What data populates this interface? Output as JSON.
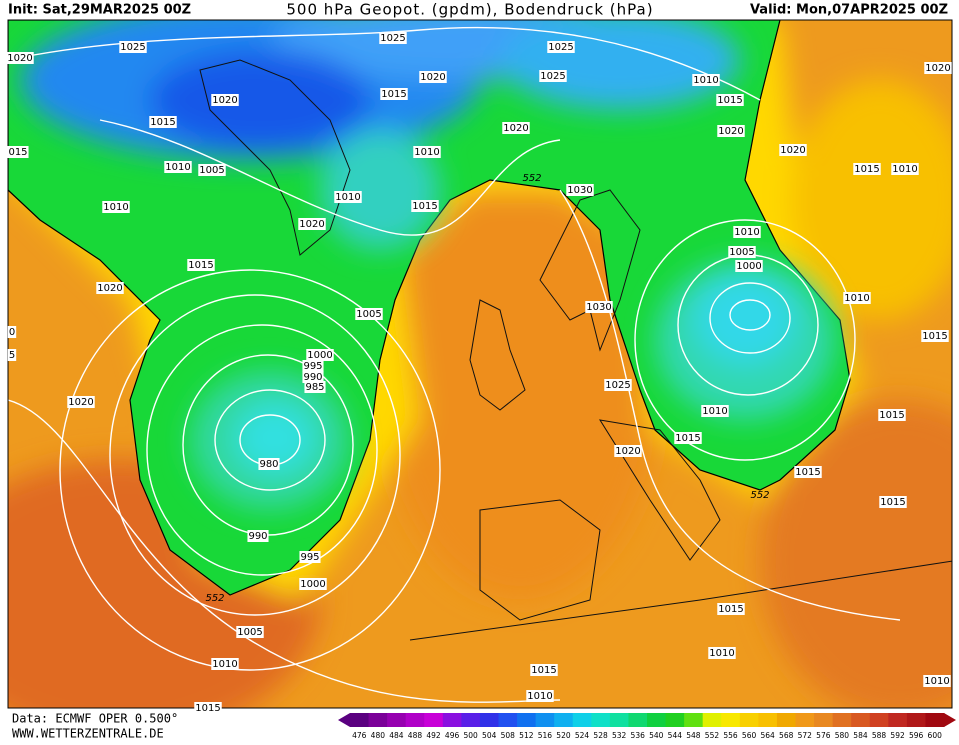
{
  "header": {
    "init": "Init: Sat,29MAR2025 00Z",
    "title": "500 hPa Geopot. (gpdm), Bodendruck (hPa)",
    "valid": "Valid: Mon,07APR2025 00Z"
  },
  "footer": {
    "data": "Data: ECMWF OPER 0.500°",
    "site": "WWW.WETTERZENTRALE.DE"
  },
  "colorbar": {
    "values": [
      476,
      480,
      484,
      488,
      492,
      496,
      500,
      504,
      508,
      512,
      516,
      520,
      524,
      528,
      532,
      536,
      540,
      544,
      548,
      552,
      556,
      560,
      564,
      568,
      572,
      576,
      580,
      584,
      588,
      592,
      596,
      600
    ],
    "colors": [
      "#5a0080",
      "#7a0098",
      "#9600b0",
      "#b000c8",
      "#c800d8",
      "#8a10e0",
      "#5a20e8",
      "#3030e8",
      "#2050f0",
      "#1070f0",
      "#1090f0",
      "#10b0f0",
      "#10d0e8",
      "#10e0c8",
      "#10e0a0",
      "#10d870",
      "#10d040",
      "#20d020",
      "#60e010",
      "#e0f000",
      "#f8e800",
      "#f8d000",
      "#f8c000",
      "#f0a800",
      "#f09818",
      "#e88820",
      "#e07020",
      "#d85820",
      "#d04020",
      "#c02820",
      "#b01818",
      "#a00810"
    ]
  },
  "isobar_labels": [
    "1020",
    "1025",
    "1025",
    "1025",
    "1025",
    "1020",
    "1010",
    "1015",
    "1020",
    "1020",
    "1015",
    "1015",
    "1020",
    "1020",
    "015",
    "1010",
    "1005",
    "1010",
    "1020",
    "1015",
    "1010",
    "1010",
    "1010",
    "1015",
    "1030",
    "1020",
    "1010",
    "1005",
    "1000",
    "1015",
    "1020",
    "1030",
    "1010",
    "1005",
    "0",
    "1015",
    "5",
    "1000",
    "995",
    "990",
    "985",
    "1025",
    "1020",
    "1010",
    "1015",
    "1015",
    "1020",
    "980",
    "1015",
    "1015",
    "990",
    "995",
    "1000",
    "1015",
    "1005",
    "1010",
    "1010",
    "1015",
    "1010",
    "1010",
    "1015"
  ],
  "contour_labels": [
    "552",
    "552",
    "552"
  ]
}
